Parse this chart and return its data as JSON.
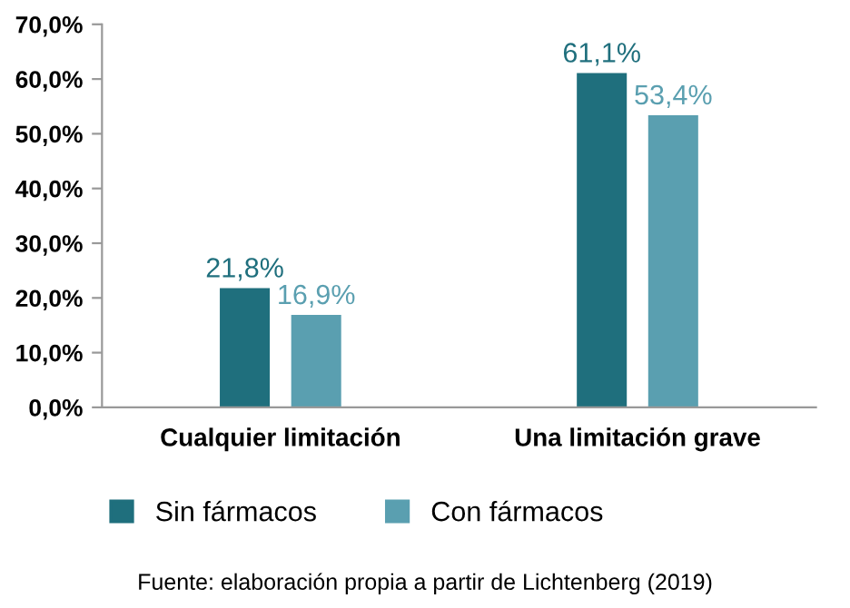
{
  "chart_data": {
    "type": "bar",
    "categories": [
      "Cualquier limitación",
      "Una limitación grave"
    ],
    "series": [
      {
        "name": "Sin fármacos",
        "color": "#1f6f7d",
        "values": [
          21.8,
          61.1
        ],
        "value_labels": [
          "21,8%",
          "61,1%"
        ]
      },
      {
        "name": "Con fármacos",
        "color": "#5a9fb0",
        "values": [
          16.9,
          53.4
        ],
        "value_labels": [
          "16,9%",
          "53,4%"
        ]
      }
    ],
    "ylim": [
      0,
      70
    ],
    "yticks": [
      {
        "value": 0,
        "label": "0,0%"
      },
      {
        "value": 10,
        "label": "10,0%"
      },
      {
        "value": 20,
        "label": "20,0%"
      },
      {
        "value": 30,
        "label": "30,0%"
      },
      {
        "value": 40,
        "label": "40,0%"
      },
      {
        "value": 50,
        "label": "50,0%"
      },
      {
        "value": 60,
        "label": "60,0%"
      },
      {
        "value": 70,
        "label": "70,0%"
      }
    ],
    "grid": false,
    "legend": "bottom",
    "annotations": [
      "Fuente: elaboración propia a partir de Lichtenberg (2019)"
    ]
  }
}
